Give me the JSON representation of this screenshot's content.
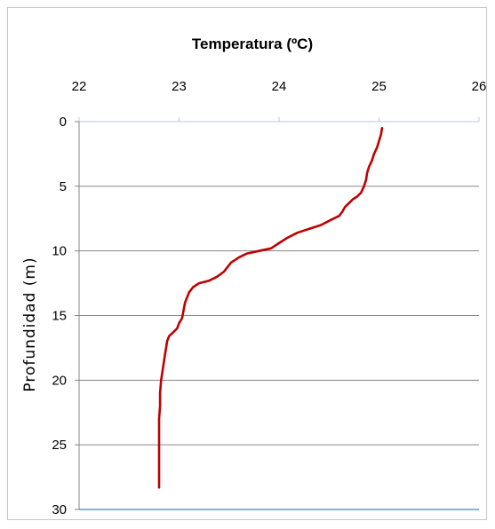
{
  "chart_data": {
    "type": "line",
    "title": "Temperatura (ºC)",
    "xlabel": "Temperatura (ºC)",
    "ylabel": "Profundidad (m)",
    "xlim": [
      22,
      26
    ],
    "ylim": [
      0,
      30
    ],
    "y_inverted": true,
    "x_axis_position": "top",
    "x_ticks": [
      "22",
      "23",
      "24",
      "25",
      "26"
    ],
    "y_ticks": [
      "0",
      "5",
      "10",
      "15",
      "20",
      "25",
      "30"
    ],
    "grid": "horizontal",
    "legend": "none",
    "series": [
      {
        "color": "#c00000",
        "x": [
          25.03,
          25.02,
          25.0,
          24.98,
          24.95,
          24.93,
          24.9,
          24.88,
          24.87,
          24.85,
          24.82,
          24.78,
          24.74,
          24.7,
          24.66,
          24.63,
          24.6,
          24.52,
          24.42,
          24.3,
          24.18,
          24.08,
          24.0,
          23.92,
          23.8,
          23.68,
          23.6,
          23.52,
          23.48,
          23.45,
          23.38,
          23.3,
          23.2,
          23.14,
          23.1,
          23.08,
          23.06,
          23.05,
          23.04,
          23.03,
          23.0,
          22.98,
          22.94,
          22.9,
          22.88,
          22.87,
          22.86,
          22.85,
          22.84,
          22.83,
          22.82,
          22.81,
          22.81,
          22.8,
          22.8,
          22.8,
          22.8
        ],
        "y": [
          0.5,
          1.0,
          1.5,
          2.0,
          2.5,
          3.0,
          3.5,
          4.0,
          4.5,
          5.0,
          5.5,
          5.8,
          6.0,
          6.3,
          6.6,
          7.0,
          7.3,
          7.6,
          8.0,
          8.3,
          8.6,
          9.0,
          9.4,
          9.8,
          10.0,
          10.2,
          10.5,
          10.9,
          11.3,
          11.6,
          12.0,
          12.3,
          12.5,
          12.8,
          13.2,
          13.6,
          14.0,
          14.4,
          14.8,
          15.2,
          15.6,
          16.0,
          16.3,
          16.6,
          17.0,
          17.5,
          18.0,
          18.5,
          19.0,
          19.5,
          20.0,
          21.0,
          22.0,
          23.0,
          25.0,
          27.0,
          28.3
        ]
      }
    ]
  }
}
